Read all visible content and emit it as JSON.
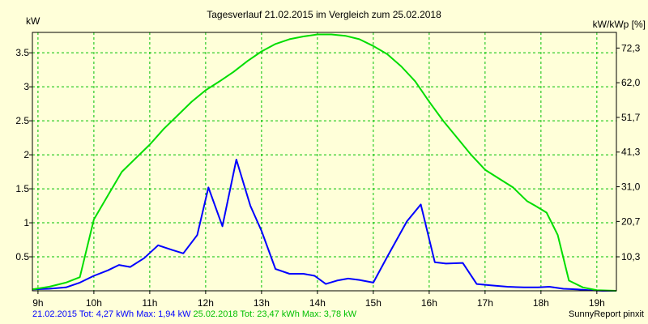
{
  "chart_data": {
    "type": "line",
    "title": "Tagesverlauf 21.02.2015 im Vergleich zum 25.02.2018",
    "ylabel_left": "kW",
    "ylabel_right": "kW/kWp [%]",
    "xlim": [
      8.9,
      19.35
    ],
    "ylim": [
      0,
      3.8
    ],
    "x_ticks": [
      9,
      10,
      11,
      12,
      13,
      14,
      15,
      16,
      17,
      18,
      19
    ],
    "x_tick_labels": [
      "9h",
      "10h",
      "11h",
      "12h",
      "13h",
      "14h",
      "15h",
      "16h",
      "17h",
      "18h",
      "19h"
    ],
    "y_ticks": [
      0.5,
      1,
      1.5,
      2,
      2.5,
      3,
      3.5
    ],
    "y_tick_labels": [
      "0.5",
      "1",
      "1.5",
      "2",
      "2.5",
      "3",
      "3.5"
    ],
    "y_right_ticks": [
      0.5,
      1.02,
      1.53,
      2.04,
      2.55,
      3.06,
      3.57
    ],
    "y_right_tick_labels": [
      "10,3",
      "20,7",
      "31,0",
      "41,3",
      "51,7",
      "62,0",
      "72,3"
    ],
    "grid": true,
    "series": [
      {
        "name": "21.02.2015",
        "color": "#0000ff",
        "x": [
          8.9,
          9.2,
          9.5,
          9.75,
          10.0,
          10.25,
          10.45,
          10.65,
          10.9,
          11.15,
          11.4,
          11.6,
          11.85,
          12.05,
          12.3,
          12.55,
          12.8,
          13.0,
          13.25,
          13.5,
          13.75,
          13.95,
          14.15,
          14.35,
          14.55,
          14.75,
          15.0,
          15.25,
          15.6,
          15.85,
          16.1,
          16.3,
          16.6,
          16.85,
          17.1,
          17.4,
          17.7,
          17.95,
          18.15,
          18.4,
          18.65,
          18.85,
          19.1,
          19.35
        ],
        "y": [
          0.02,
          0.03,
          0.05,
          0.12,
          0.22,
          0.3,
          0.38,
          0.35,
          0.48,
          0.67,
          0.6,
          0.55,
          0.82,
          1.52,
          0.95,
          1.93,
          1.25,
          0.88,
          0.32,
          0.25,
          0.25,
          0.22,
          0.1,
          0.15,
          0.18,
          0.16,
          0.12,
          0.5,
          1.02,
          1.27,
          0.42,
          0.4,
          0.41,
          0.1,
          0.08,
          0.06,
          0.05,
          0.05,
          0.06,
          0.03,
          0.02,
          0.01,
          0.0,
          0.0
        ]
      },
      {
        "name": "25.02.2018",
        "color": "#00dd00",
        "x": [
          8.9,
          9.2,
          9.5,
          9.75,
          10.0,
          10.25,
          10.5,
          10.75,
          11.0,
          11.25,
          11.5,
          11.75,
          12.0,
          12.25,
          12.5,
          12.75,
          13.0,
          13.25,
          13.5,
          13.75,
          14.0,
          14.25,
          14.5,
          14.75,
          15.0,
          15.25,
          15.5,
          15.75,
          16.0,
          16.25,
          16.5,
          16.75,
          17.0,
          17.25,
          17.5,
          17.75,
          17.9,
          18.1,
          18.3,
          18.5,
          18.75,
          19.0,
          19.35
        ],
        "y": [
          0.02,
          0.06,
          0.12,
          0.2,
          1.05,
          1.4,
          1.75,
          1.95,
          2.15,
          2.38,
          2.58,
          2.78,
          2.95,
          3.08,
          3.22,
          3.38,
          3.52,
          3.63,
          3.7,
          3.74,
          3.77,
          3.77,
          3.75,
          3.7,
          3.6,
          3.48,
          3.3,
          3.08,
          2.78,
          2.5,
          2.25,
          2.0,
          1.78,
          1.65,
          1.52,
          1.32,
          1.25,
          1.15,
          0.82,
          0.15,
          0.05,
          0.01,
          0.0
        ]
      }
    ]
  },
  "footer": {
    "series1_text": "21.02.2015 Tot: 4,27 kWh Max: 1,94 kW",
    "series2_text": " 25.02.2018 Tot: 23,47 kWh Max: 3,78 kW",
    "brand": "SunnyReport pinxit"
  }
}
